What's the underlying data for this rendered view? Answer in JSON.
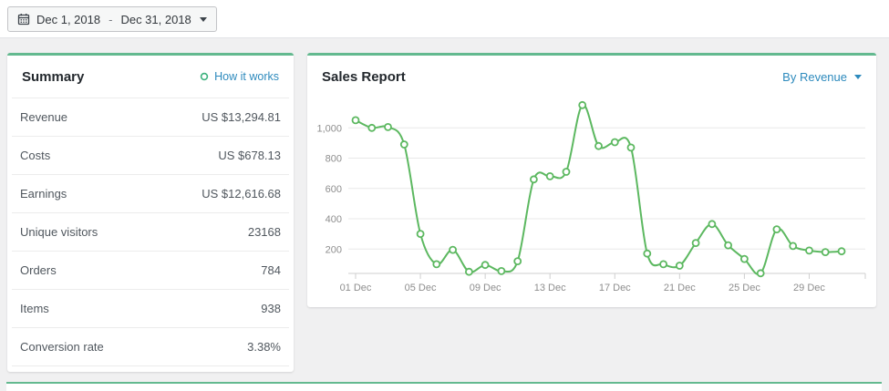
{
  "topbar": {
    "date_range": {
      "start": "Dec 1, 2018",
      "separator": "-",
      "end": "Dec 31, 2018"
    }
  },
  "summary": {
    "title": "Summary",
    "help_link": "How it works",
    "rows": [
      {
        "label": "Revenue",
        "value": "US $13,294.81"
      },
      {
        "label": "Costs",
        "value": "US $678.13"
      },
      {
        "label": "Earnings",
        "value": "US $12,616.68"
      },
      {
        "label": "Unique visitors",
        "value": "23168"
      },
      {
        "label": "Orders",
        "value": "784"
      },
      {
        "label": "Items",
        "value": "938"
      },
      {
        "label": "Conversion rate",
        "value": "3.38%"
      }
    ]
  },
  "sales_report": {
    "title": "Sales Report",
    "filter_label": "By Revenue"
  },
  "chart_data": {
    "type": "line",
    "title": "Sales Report",
    "categories": [
      "01 Dec",
      "02 Dec",
      "03 Dec",
      "04 Dec",
      "05 Dec",
      "06 Dec",
      "07 Dec",
      "08 Dec",
      "09 Dec",
      "10 Dec",
      "11 Dec",
      "12 Dec",
      "13 Dec",
      "14 Dec",
      "15 Dec",
      "16 Dec",
      "17 Dec",
      "18 Dec",
      "19 Dec",
      "20 Dec",
      "21 Dec",
      "22 Dec",
      "23 Dec",
      "24 Dec",
      "25 Dec",
      "26 Dec",
      "27 Dec",
      "28 Dec",
      "29 Dec",
      "30 Dec",
      "31 Dec"
    ],
    "series": [
      {
        "name": "Revenue",
        "values": [
          1050,
          1000,
          1005,
          890,
          300,
          100,
          195,
          50,
          95,
          55,
          120,
          660,
          680,
          710,
          1150,
          880,
          905,
          870,
          170,
          100,
          90,
          240,
          365,
          225,
          135,
          40,
          330,
          220,
          190,
          180,
          185
        ]
      }
    ],
    "xtick_labels": [
      "01 Dec",
      "05 Dec",
      "09 Dec",
      "13 Dec",
      "17 Dec",
      "21 Dec",
      "25 Dec",
      "29 Dec"
    ],
    "xtick_indices": [
      0,
      4,
      8,
      12,
      16,
      20,
      24,
      28
    ],
    "ytick_labels": [
      "200",
      "400",
      "600",
      "800",
      "1,000"
    ],
    "ytick_values": [
      200,
      400,
      600,
      800,
      1000
    ],
    "ylim": [
      0,
      1200
    ],
    "grid": true,
    "legend": "none",
    "line_color": "#5cb860",
    "marker": "hollow-circle"
  },
  "colors": {
    "accent_green": "#63b98f",
    "link_blue": "#2d8abd",
    "chart_line_green": "#5cb860",
    "page_background": "#f0f0f1"
  }
}
